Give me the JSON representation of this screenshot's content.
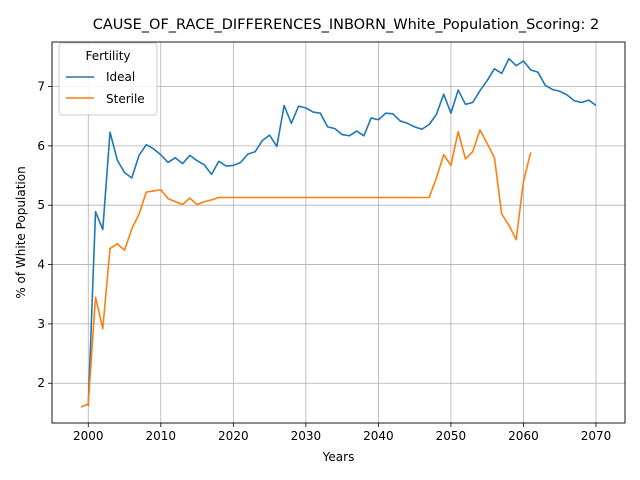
{
  "chart_data": {
    "type": "line",
    "title": "CAUSE_OF_RACE_DIFFERENCES_INBORN_White_Population_Scoring: 2",
    "xlabel": "Years",
    "ylabel": "% of White Population",
    "xlim": [
      1995,
      2074
    ],
    "ylim": [
      1.33,
      7.75
    ],
    "xticks": [
      2000,
      2010,
      2020,
      2030,
      2040,
      2050,
      2060,
      2070
    ],
    "yticks": [
      2,
      3,
      4,
      5,
      6,
      7
    ],
    "grid": true,
    "legend": {
      "title": "Fertility",
      "placement": "top-left"
    },
    "colors": {
      "Ideal": "#1f77b4",
      "Sterile": "#ff7f0e"
    },
    "series": [
      {
        "name": "Ideal",
        "x": [
          2000,
          2001,
          2002,
          2003,
          2004,
          2005,
          2006,
          2007,
          2008,
          2009,
          2010,
          2011,
          2012,
          2013,
          2014,
          2015,
          2016,
          2017,
          2018,
          2019,
          2020,
          2021,
          2022,
          2023,
          2024,
          2025,
          2026,
          2027,
          2028,
          2029,
          2030,
          2031,
          2032,
          2033,
          2034,
          2035,
          2036,
          2037,
          2038,
          2039,
          2040,
          2041,
          2042,
          2043,
          2044,
          2045,
          2046,
          2047,
          2048,
          2049,
          2050,
          2051,
          2052,
          2053,
          2054,
          2055,
          2056,
          2057,
          2058,
          2059,
          2060,
          2061,
          2062,
          2063,
          2064,
          2065,
          2066,
          2067,
          2068,
          2069,
          2070
        ],
        "y": [
          1.62,
          4.89,
          4.59,
          6.23,
          5.76,
          5.55,
          5.46,
          5.84,
          6.02,
          5.95,
          5.85,
          5.72,
          5.8,
          5.7,
          5.84,
          5.75,
          5.68,
          5.52,
          5.74,
          5.66,
          5.67,
          5.72,
          5.86,
          5.9,
          6.09,
          6.18,
          5.99,
          6.68,
          6.38,
          6.67,
          6.64,
          6.57,
          6.55,
          6.32,
          6.29,
          6.19,
          6.17,
          6.25,
          6.17,
          6.47,
          6.44,
          6.55,
          6.54,
          6.42,
          6.38,
          6.32,
          6.28,
          6.36,
          6.53,
          6.87,
          6.55,
          6.94,
          6.7,
          6.73,
          6.93,
          7.1,
          7.3,
          7.22,
          7.47,
          7.35,
          7.43,
          7.28,
          7.24,
          7.02,
          6.95,
          6.92,
          6.86,
          6.76,
          6.73,
          6.77,
          6.68
        ]
      },
      {
        "name": "Sterile",
        "x": [
          1999,
          2000,
          2001,
          2002,
          2003,
          2004,
          2005,
          2006,
          2007,
          2008,
          2009,
          2010,
          2011,
          2012,
          2013,
          2014,
          2015,
          2016,
          2017,
          2018,
          2019,
          2020,
          2021,
          2022,
          2023,
          2024,
          2025,
          2026,
          2027,
          2028,
          2029,
          2030,
          2031,
          2032,
          2033,
          2034,
          2035,
          2036,
          2037,
          2038,
          2039,
          2040,
          2041,
          2042,
          2043,
          2044,
          2045,
          2046,
          2047,
          2048,
          2049,
          2050,
          2051,
          2052,
          2053,
          2054,
          2055,
          2056,
          2057,
          2058,
          2059,
          2060,
          2061
        ],
        "y": [
          1.6,
          1.65,
          3.45,
          2.92,
          4.27,
          4.35,
          4.24,
          4.6,
          4.85,
          5.22,
          5.24,
          5.26,
          5.11,
          5.06,
          5.01,
          5.12,
          5.01,
          5.06,
          5.09,
          5.13,
          5.13,
          5.13,
          5.13,
          5.13,
          5.13,
          5.13,
          5.13,
          5.13,
          5.13,
          5.13,
          5.13,
          5.13,
          5.13,
          5.13,
          5.13,
          5.13,
          5.13,
          5.13,
          5.13,
          5.13,
          5.13,
          5.13,
          5.13,
          5.13,
          5.13,
          5.13,
          5.13,
          5.13,
          5.13,
          5.46,
          5.85,
          5.67,
          6.24,
          5.78,
          5.9,
          6.27,
          6.04,
          5.8,
          4.85,
          4.66,
          4.42,
          5.4,
          5.89
        ]
      }
    ]
  }
}
